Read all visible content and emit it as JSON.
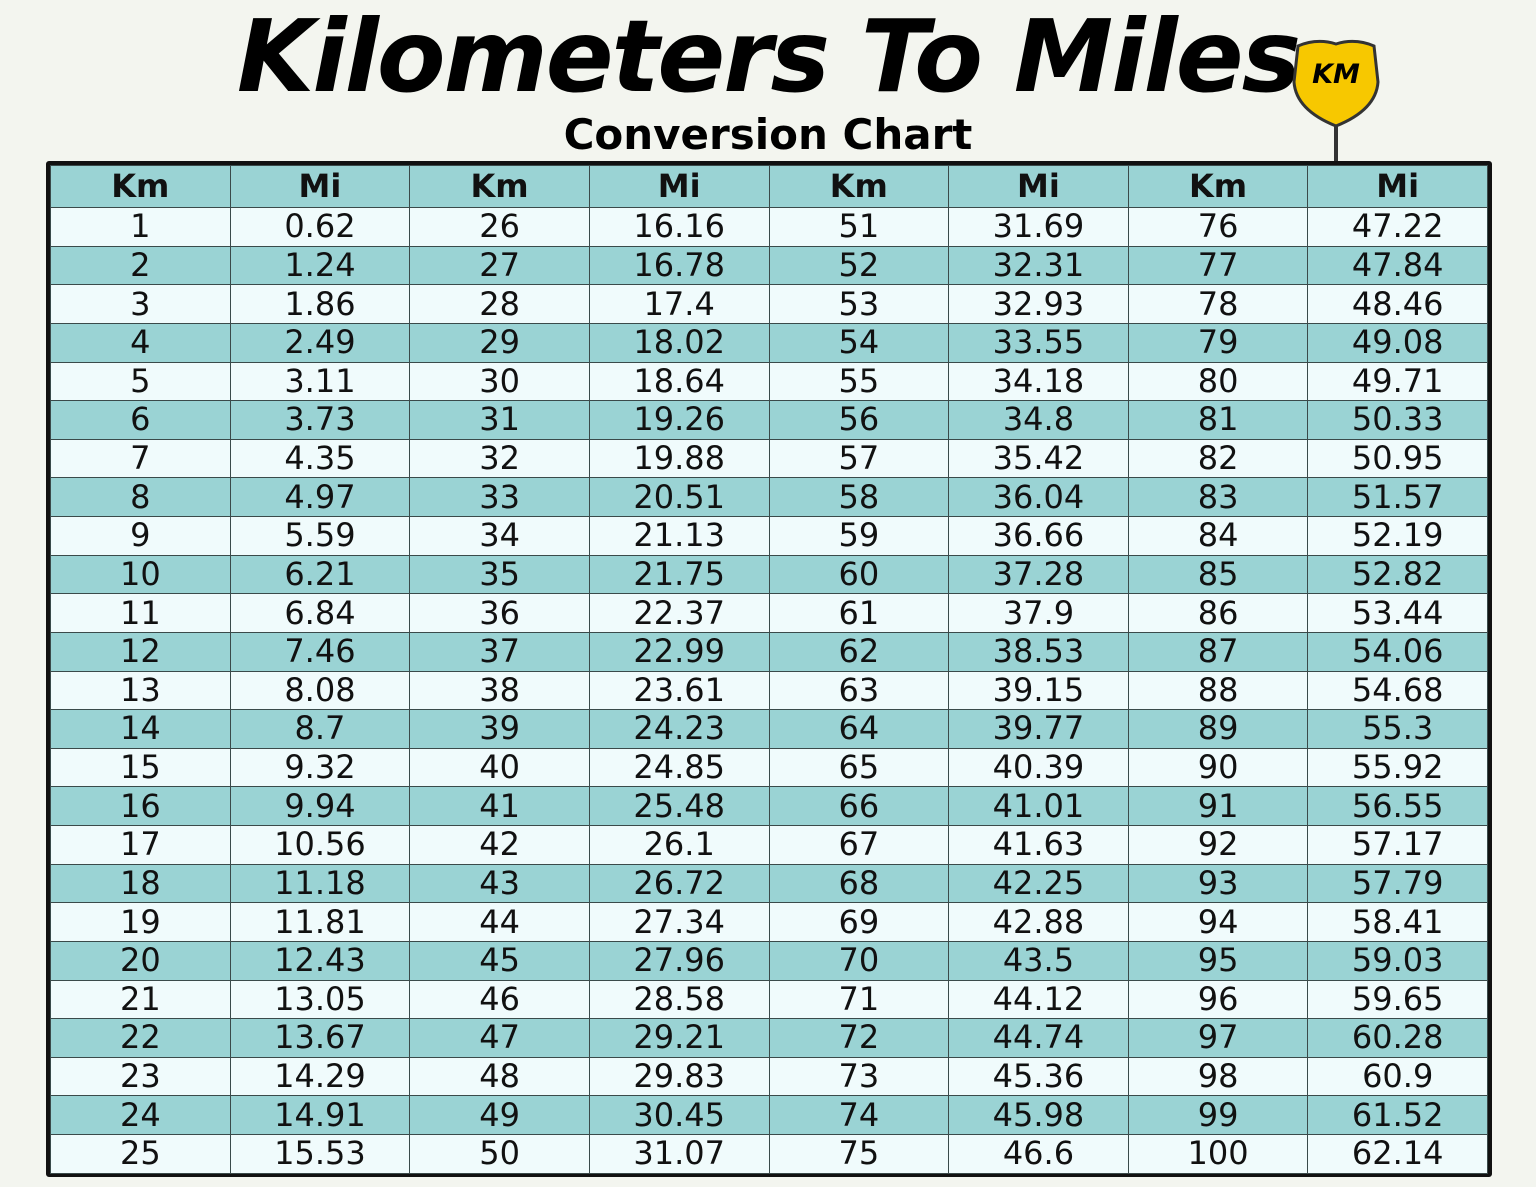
{
  "title": "Kilometers To Miles",
  "subtitle": "Conversion Chart",
  "badge": "KM",
  "colors": {
    "sign": "#f7c800",
    "row_alt": "#9ad3d4",
    "row_light": "#f0fbfc",
    "border": "#111111"
  },
  "headers": [
    "Km",
    "Mi",
    "Km",
    "Mi",
    "Km",
    "Mi",
    "Km",
    "Mi"
  ],
  "rows": [
    [
      "1",
      "0.62",
      "26",
      "16.16",
      "51",
      "31.69",
      "76",
      "47.22"
    ],
    [
      "2",
      "1.24",
      "27",
      "16.78",
      "52",
      "32.31",
      "77",
      "47.84"
    ],
    [
      "3",
      "1.86",
      "28",
      "17.4",
      "53",
      "32.93",
      "78",
      "48.46"
    ],
    [
      "4",
      "2.49",
      "29",
      "18.02",
      "54",
      "33.55",
      "79",
      "49.08"
    ],
    [
      "5",
      "3.11",
      "30",
      "18.64",
      "55",
      "34.18",
      "80",
      "49.71"
    ],
    [
      "6",
      "3.73",
      "31",
      "19.26",
      "56",
      "34.8",
      "81",
      "50.33"
    ],
    [
      "7",
      "4.35",
      "32",
      "19.88",
      "57",
      "35.42",
      "82",
      "50.95"
    ],
    [
      "8",
      "4.97",
      "33",
      "20.51",
      "58",
      "36.04",
      "83",
      "51.57"
    ],
    [
      "9",
      "5.59",
      "34",
      "21.13",
      "59",
      "36.66",
      "84",
      "52.19"
    ],
    [
      "10",
      "6.21",
      "35",
      "21.75",
      "60",
      "37.28",
      "85",
      "52.82"
    ],
    [
      "11",
      "6.84",
      "36",
      "22.37",
      "61",
      "37.9",
      "86",
      "53.44"
    ],
    [
      "12",
      "7.46",
      "37",
      "22.99",
      "62",
      "38.53",
      "87",
      "54.06"
    ],
    [
      "13",
      "8.08",
      "38",
      "23.61",
      "63",
      "39.15",
      "88",
      "54.68"
    ],
    [
      "14",
      "8.7",
      "39",
      "24.23",
      "64",
      "39.77",
      "89",
      "55.3"
    ],
    [
      "15",
      "9.32",
      "40",
      "24.85",
      "65",
      "40.39",
      "90",
      "55.92"
    ],
    [
      "16",
      "9.94",
      "41",
      "25.48",
      "66",
      "41.01",
      "91",
      "56.55"
    ],
    [
      "17",
      "10.56",
      "42",
      "26.1",
      "67",
      "41.63",
      "92",
      "57.17"
    ],
    [
      "18",
      "11.18",
      "43",
      "26.72",
      "68",
      "42.25",
      "93",
      "57.79"
    ],
    [
      "19",
      "11.81",
      "44",
      "27.34",
      "69",
      "42.88",
      "94",
      "58.41"
    ],
    [
      "20",
      "12.43",
      "45",
      "27.96",
      "70",
      "43.5",
      "95",
      "59.03"
    ],
    [
      "21",
      "13.05",
      "46",
      "28.58",
      "71",
      "44.12",
      "96",
      "59.65"
    ],
    [
      "22",
      "13.67",
      "47",
      "29.21",
      "72",
      "44.74",
      "97",
      "60.28"
    ],
    [
      "23",
      "14.29",
      "48",
      "29.83",
      "73",
      "45.36",
      "98",
      "60.9"
    ],
    [
      "24",
      "14.91",
      "49",
      "30.45",
      "74",
      "45.98",
      "99",
      "61.52"
    ],
    [
      "25",
      "15.53",
      "50",
      "31.07",
      "75",
      "46.6",
      "100",
      "62.14"
    ]
  ]
}
